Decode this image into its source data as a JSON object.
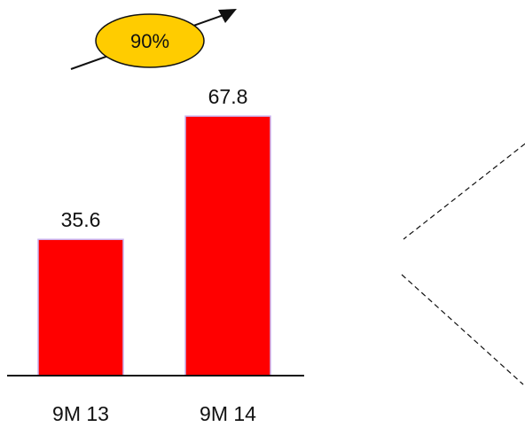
{
  "colors": {
    "bar": "#ff0000",
    "bar_edge": "#c9b3f0",
    "badge_fill": "#ffcc00",
    "text": "#111111",
    "axis": "#111111"
  },
  "growth_badge": {
    "label": "90%"
  },
  "chart_data": {
    "type": "bar",
    "categories": [
      "9M 13",
      "9M 14"
    ],
    "values": [
      35.6,
      67.8
    ],
    "data_labels": [
      "35.6",
      "67.8"
    ],
    "title": "",
    "xlabel": "",
    "ylabel": "",
    "ylim": [
      0,
      75
    ],
    "grid": false,
    "legend": "none"
  }
}
